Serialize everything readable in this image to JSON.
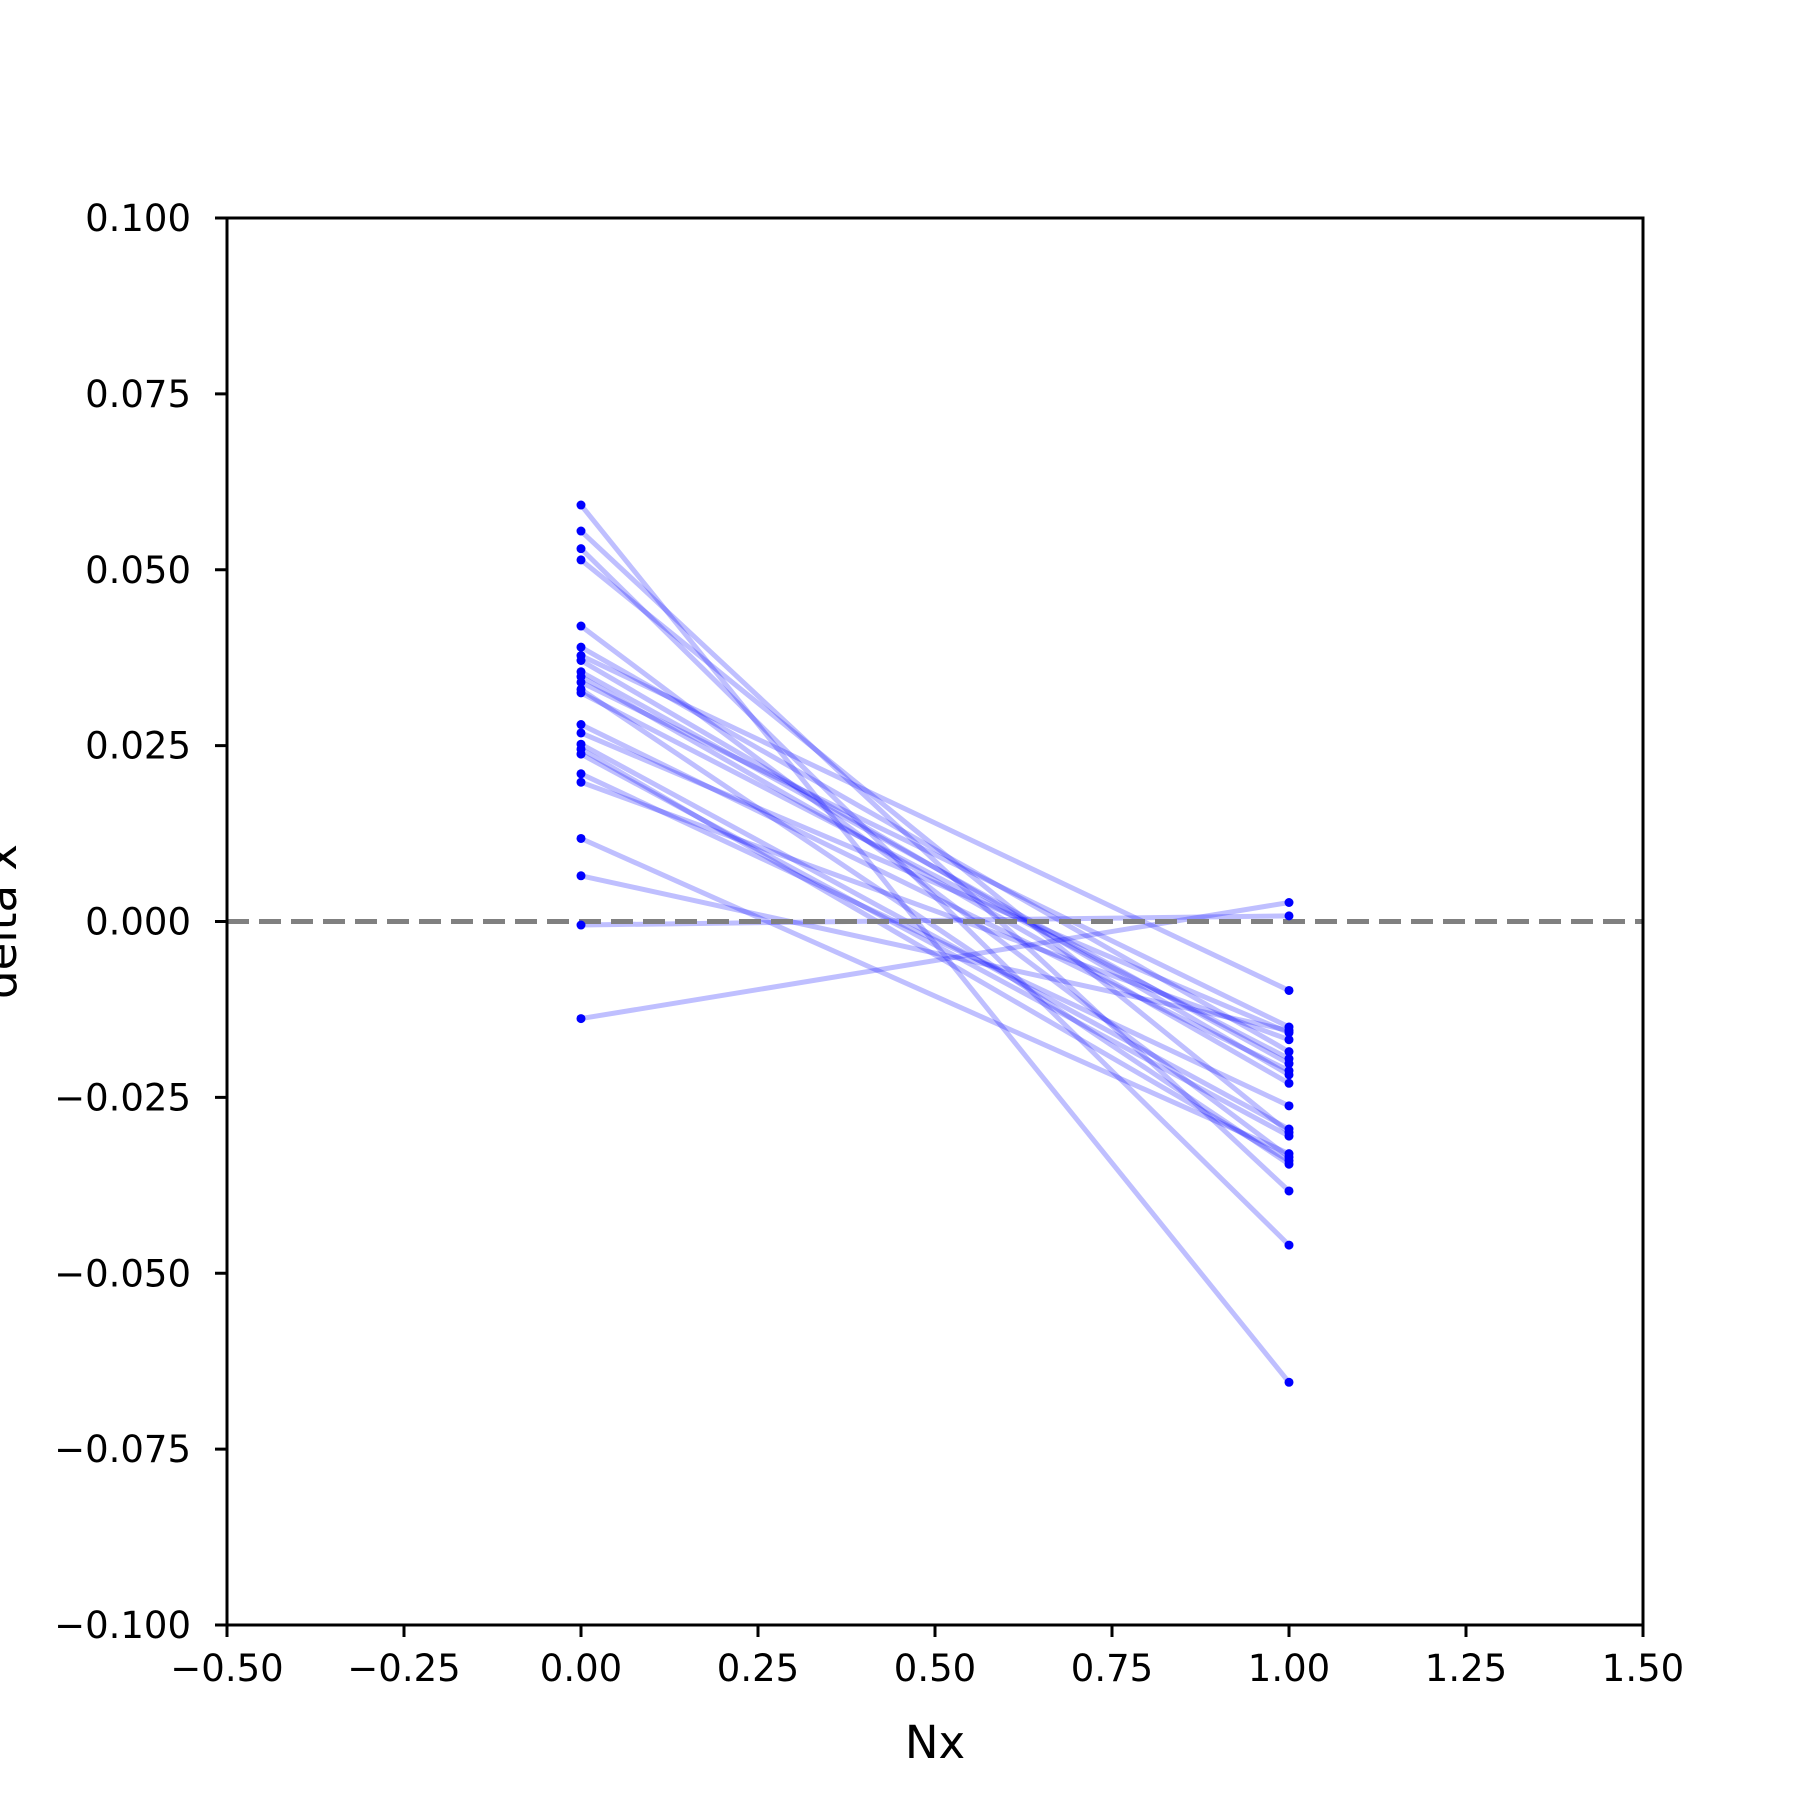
{
  "chart_data": {
    "type": "line",
    "title": "",
    "xlabel": "Nx",
    "ylabel": "delta x",
    "xlim": [
      -0.5,
      1.5
    ],
    "ylim": [
      -0.1,
      0.1
    ],
    "xticks": [
      "−0.50",
      "−0.25",
      "0.00",
      "0.25",
      "0.50",
      "0.75",
      "1.00",
      "1.25",
      "1.50"
    ],
    "xtick_values": [
      -0.5,
      -0.25,
      0.0,
      0.25,
      0.5,
      0.75,
      1.0,
      1.25,
      1.5
    ],
    "yticks": [
      "−0.100",
      "−0.075",
      "−0.050",
      "−0.025",
      "0.000",
      "0.025",
      "0.050",
      "0.075",
      "0.100"
    ],
    "ytick_values": [
      -0.1,
      -0.075,
      -0.05,
      -0.025,
      0.0,
      0.025,
      0.05,
      0.075,
      0.1
    ],
    "grid": false,
    "legend": false,
    "line_color": "#0000ff",
    "line_opacity": 0.25,
    "marker_color": "#0000ff",
    "reference_line": {
      "y": 0.0,
      "style": "dashed",
      "color": "#808080"
    },
    "x": [
      0,
      1
    ],
    "series": [
      {
        "values": [
          0.0592,
          -0.0655
        ]
      },
      {
        "values": [
          0.0555,
          -0.0383
        ]
      },
      {
        "values": [
          0.053,
          -0.046
        ]
      },
      {
        "values": [
          0.0514,
          -0.03
        ]
      },
      {
        "values": [
          0.042,
          -0.0335
        ]
      },
      {
        "values": [
          0.039,
          -0.0185
        ]
      },
      {
        "values": [
          0.0378,
          -0.0098
        ]
      },
      {
        "values": [
          0.0371,
          -0.0218
        ]
      },
      {
        "values": [
          0.0355,
          -0.0202
        ]
      },
      {
        "values": [
          0.0348,
          -0.023
        ]
      },
      {
        "values": [
          0.034,
          -0.015
        ]
      },
      {
        "values": [
          0.033,
          -0.0345
        ]
      },
      {
        "values": [
          0.0325,
          -0.0195
        ]
      },
      {
        "values": [
          0.028,
          -0.0212
        ]
      },
      {
        "values": [
          0.0268,
          -0.0158
        ]
      },
      {
        "values": [
          0.0252,
          -0.0295
        ]
      },
      {
        "values": [
          0.0245,
          -0.034
        ]
      },
      {
        "values": [
          0.0238,
          -0.0305
        ]
      },
      {
        "values": [
          0.021,
          -0.0262
        ]
      },
      {
        "values": [
          0.0198,
          -0.0168
        ]
      },
      {
        "values": [
          0.0118,
          -0.033
        ]
      },
      {
        "values": [
          0.0065,
          -0.0155
        ]
      },
      {
        "values": [
          -0.0005,
          0.0008
        ]
      },
      {
        "values": [
          -0.0138,
          0.0027
        ]
      }
    ]
  }
}
